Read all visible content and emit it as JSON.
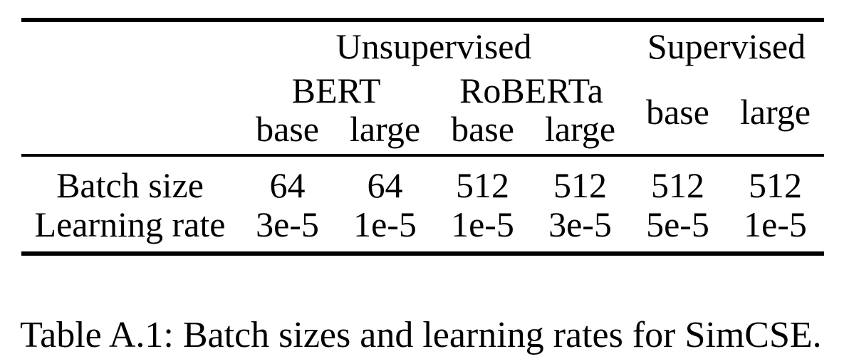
{
  "colors": {
    "text": "#000000",
    "background": "#ffffff"
  },
  "table": {
    "group_headers": [
      {
        "label": "Unsupervised",
        "span": 4
      },
      {
        "label": "Supervised",
        "span": 2
      }
    ],
    "model_headers": [
      {
        "label": "BERT"
      },
      {
        "label": "RoBERTa"
      }
    ],
    "size_headers": [
      "base",
      "large",
      "base",
      "large"
    ],
    "supervised_size_headers": [
      "base",
      "large"
    ],
    "rows": [
      {
        "label": "Batch size",
        "values": [
          "64",
          "64",
          "512",
          "512",
          "512",
          "512"
        ]
      },
      {
        "label": "Learning rate",
        "values": [
          "3e-5",
          "1e-5",
          "1e-5",
          "3e-5",
          "5e-5",
          "1e-5"
        ]
      }
    ]
  },
  "caption": "Table A.1: Batch sizes and learning rates for SimCSE."
}
